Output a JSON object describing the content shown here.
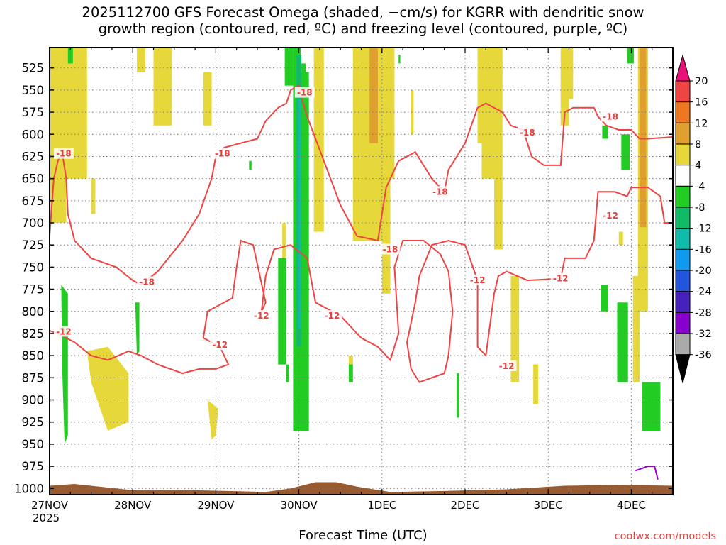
{
  "title_line1": "2025112700 GFS Forecast Omega (shaded, −cm/s) for KGRR with dendritic snow",
  "title_line2": "growth region (contoured, red, ºC) and freezing level (contoured, purple, ºC)",
  "x_axis_title": "Forecast Time (UTC)",
  "year_label": "2025",
  "credit": "coolwx.com/models",
  "colors": {
    "ground": "#9b5a2e",
    "dgz_contour": "#ee4444",
    "freezing_contour": "#9900cc",
    "grid": "#777777"
  },
  "chart_data": {
    "type": "heatmap",
    "title": "2025112700 GFS Forecast Omega (shaded, −cm/s) for KGRR with dendritic snow growth region (contoured, red, ºC) and freezing level (contoured, purple, ºC)",
    "xlabel": "Forecast Time (UTC)",
    "ylabel": "",
    "x_ticks": [
      "27NOV",
      "28NOV",
      "29NOV",
      "30NOV",
      "1DEC",
      "2DEC",
      "3DEC",
      "4DEC"
    ],
    "x_range_days": [
      0,
      7.5
    ],
    "y_ticks": [
      525,
      550,
      575,
      600,
      625,
      650,
      675,
      700,
      725,
      750,
      775,
      800,
      825,
      850,
      875,
      900,
      925,
      950,
      975,
      1000
    ],
    "y_range_hpa": [
      500,
      1010
    ],
    "y_reversed": true,
    "grid": true,
    "legend_placement": "right colorbar",
    "colorbar": {
      "labels": [
        "20",
        "16",
        "12",
        "8",
        "4",
        "-4",
        "-8",
        "-12",
        "-16",
        "-20",
        "-24",
        "-28",
        "-32",
        "-36"
      ],
      "colors": [
        "#ee4444",
        "#ee7722",
        "#e0a030",
        "#e6d83a",
        "#ffffff",
        "#22cc22",
        "#11bb66",
        "#11bbaa",
        "#1199ee",
        "#2255dd",
        "#4422bb",
        "#8800cc",
        "#aaaaaa"
      ]
    },
    "contour_labels": [
      {
        "value": "-18",
        "x_day": 0.17,
        "p_hpa": 622
      },
      {
        "value": "-18",
        "x_day": 1.17,
        "p_hpa": 767
      },
      {
        "value": "-18",
        "x_day": 2.08,
        "p_hpa": 622
      },
      {
        "value": "-18",
        "x_day": 3.07,
        "p_hpa": 553
      },
      {
        "value": "-18",
        "x_day": 4.1,
        "p_hpa": 730
      },
      {
        "value": "-18",
        "x_day": 4.7,
        "p_hpa": 665
      },
      {
        "value": "-18",
        "x_day": 5.75,
        "p_hpa": 598
      },
      {
        "value": "-18",
        "x_day": 6.75,
        "p_hpa": 580
      },
      {
        "value": "-12",
        "x_day": 0.17,
        "p_hpa": 823
      },
      {
        "value": "-12",
        "x_day": 2.05,
        "p_hpa": 838
      },
      {
        "value": "-12",
        "x_day": 2.55,
        "p_hpa": 805
      },
      {
        "value": "-12",
        "x_day": 3.4,
        "p_hpa": 805
      },
      {
        "value": "-12",
        "x_day": 5.5,
        "p_hpa": 862
      },
      {
        "value": "-12",
        "x_day": 5.15,
        "p_hpa": 765
      },
      {
        "value": "-12",
        "x_day": 6.15,
        "p_hpa": 763
      },
      {
        "value": "-12",
        "x_day": 6.75,
        "p_hpa": 692
      }
    ]
  }
}
